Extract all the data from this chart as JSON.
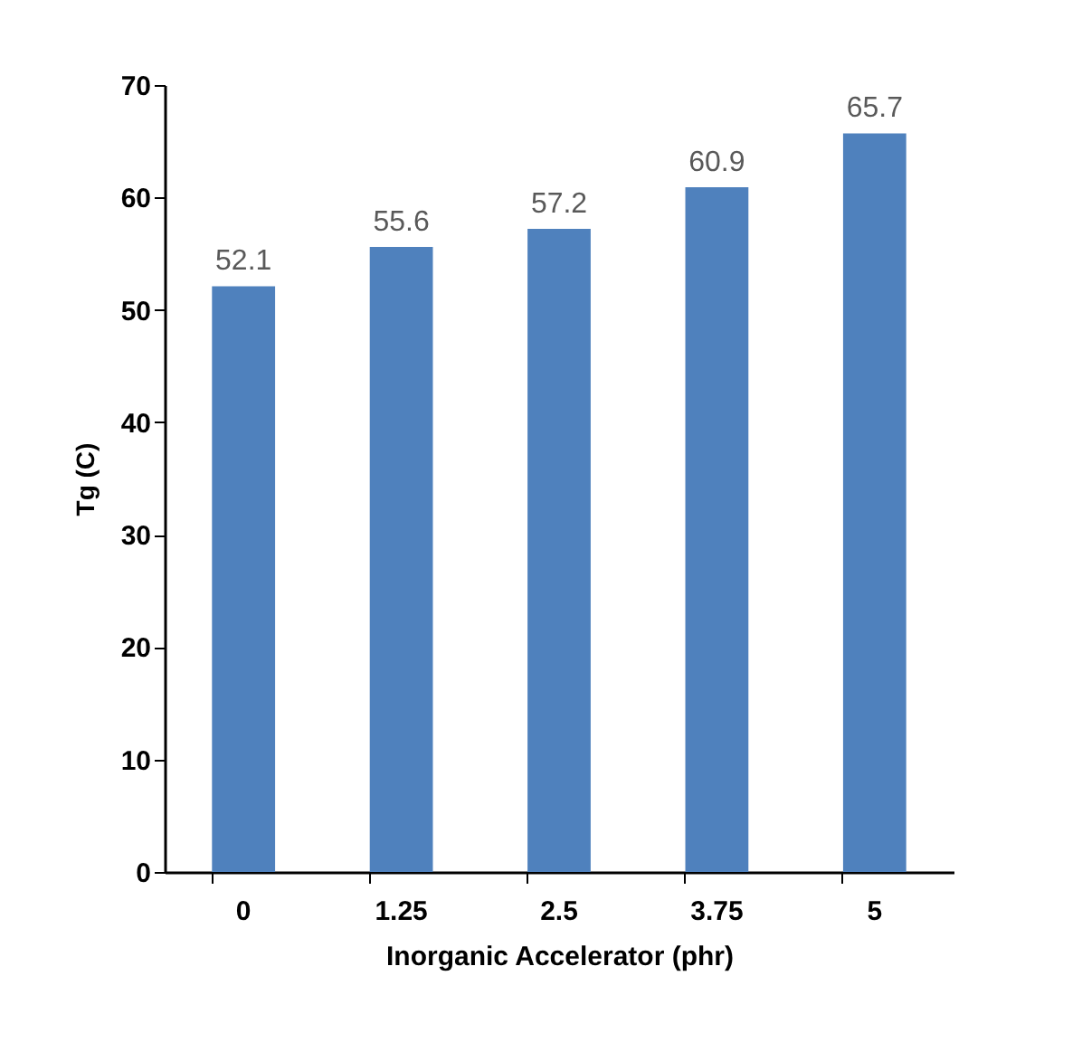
{
  "chart_data": {
    "type": "bar",
    "xlabel": "Inorganic Accelerator (phr)",
    "ylabel": "Tg (C)",
    "categories": [
      "0",
      "1.25",
      "2.5",
      "3.75",
      "5"
    ],
    "values": [
      52.1,
      55.6,
      57.2,
      60.9,
      65.7
    ],
    "color": "#4f81bd",
    "ylim": [
      0,
      70
    ],
    "yticks": [
      0,
      10,
      20,
      30,
      40,
      50,
      60,
      70
    ],
    "data_labels": true,
    "grid": false
  }
}
